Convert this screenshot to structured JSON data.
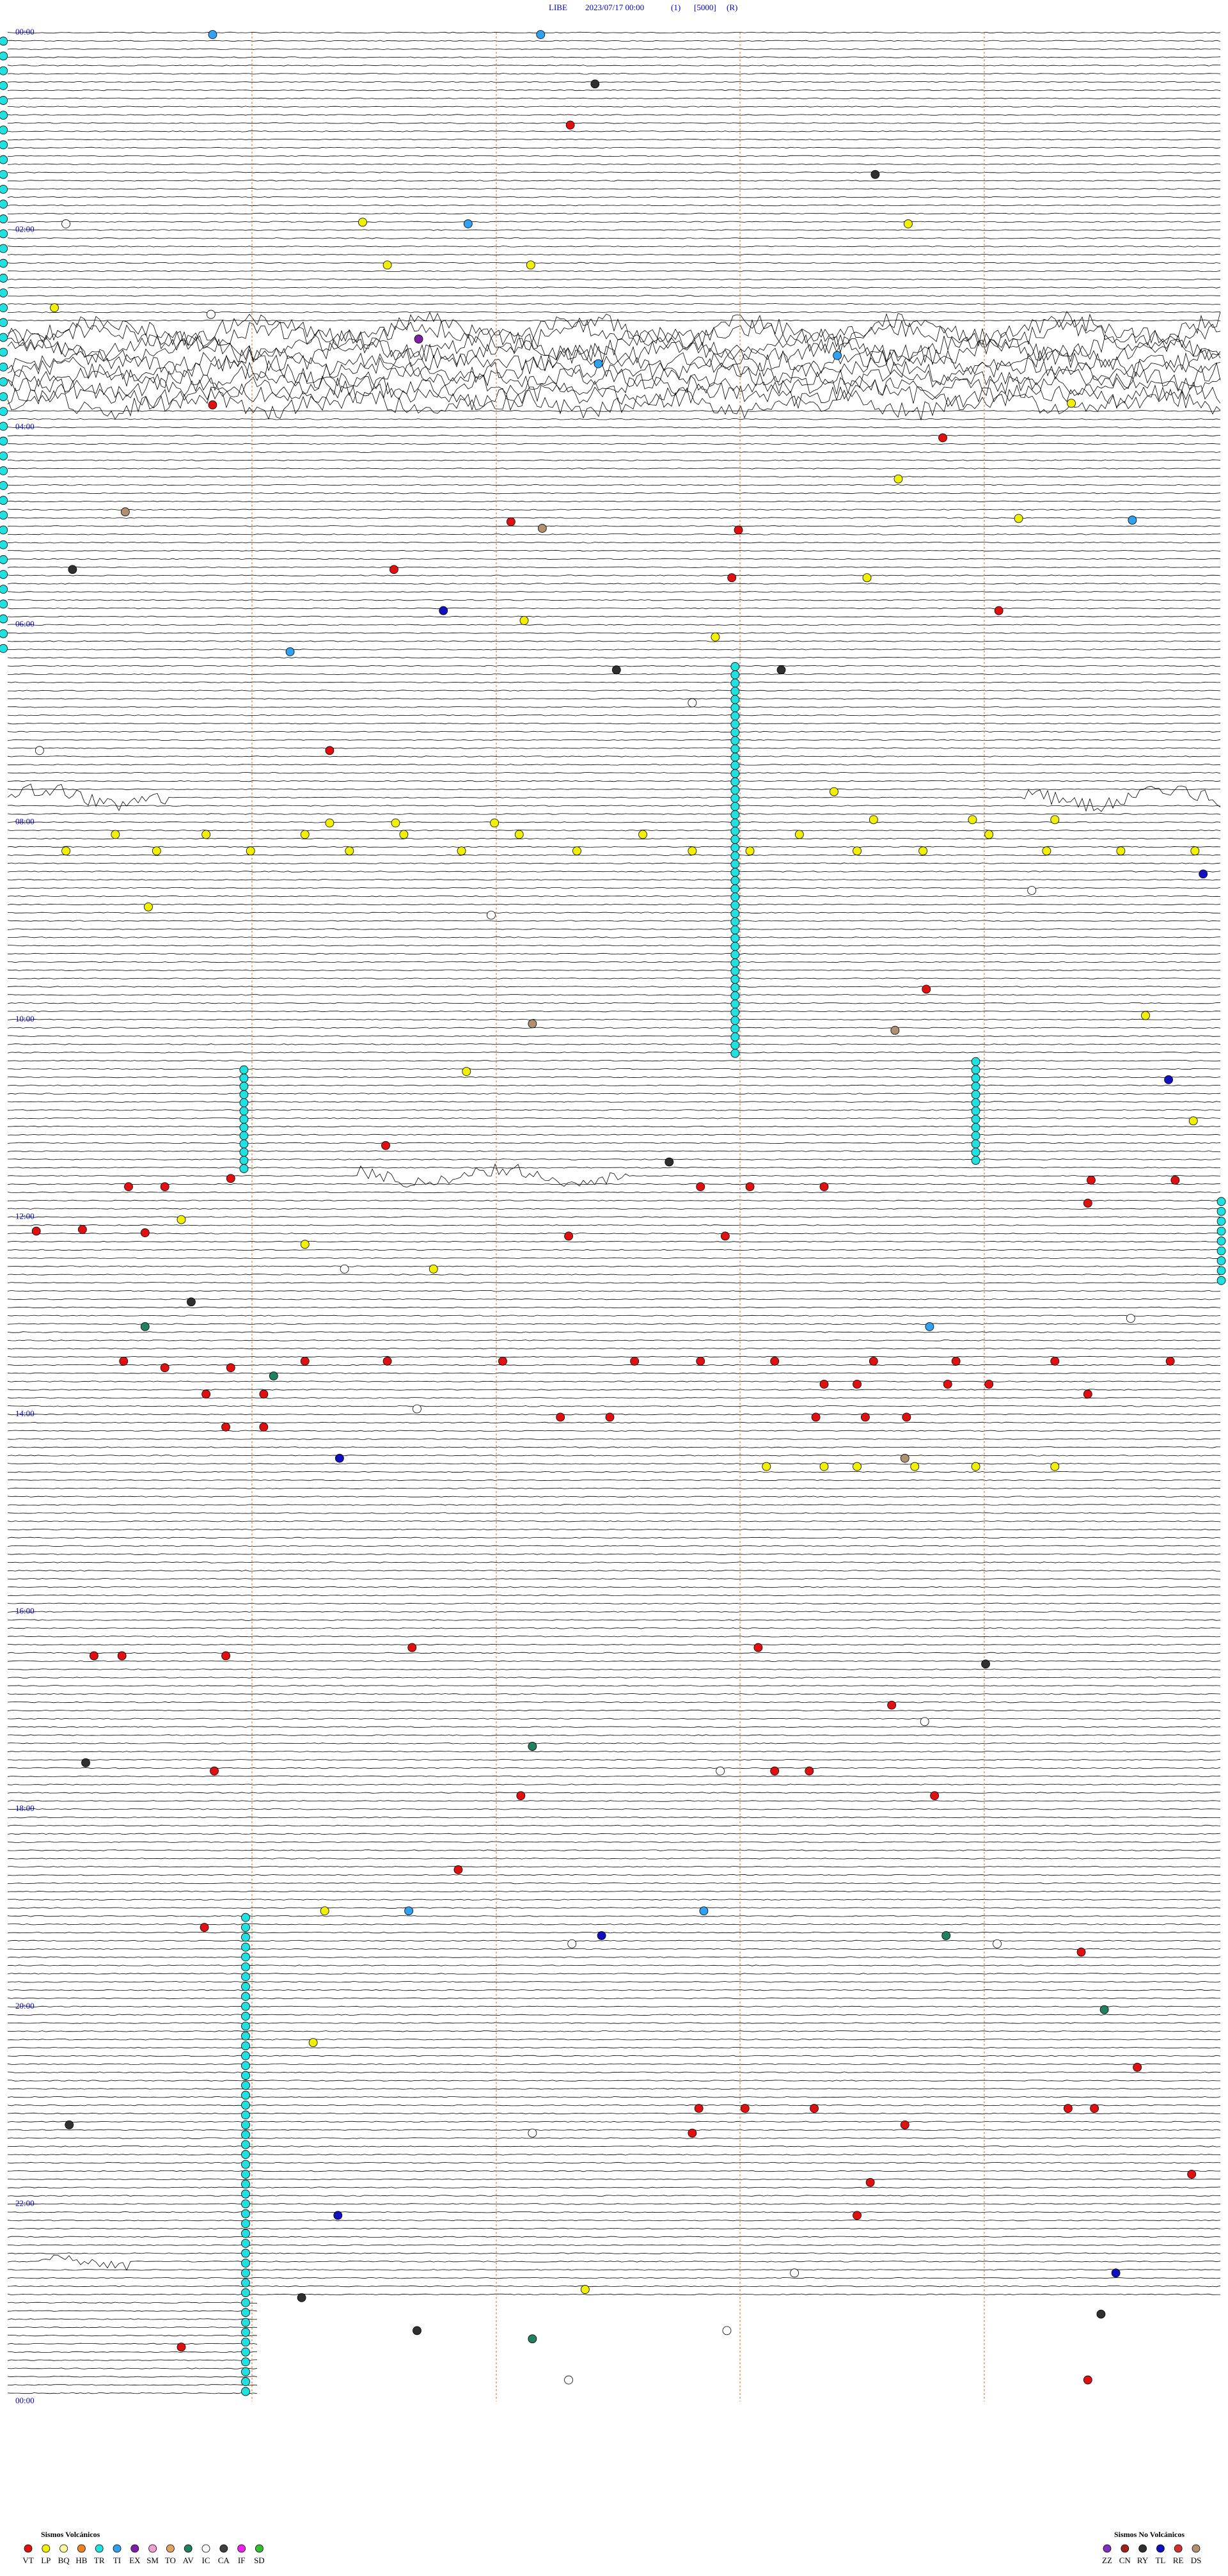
{
  "header": {
    "station": "LIBE",
    "datetime": "2023/07/17 00:00",
    "channel": "(1)",
    "scale": "[5000]",
    "mode": "(R)"
  },
  "hour_labels": [
    "00:00",
    "02:00",
    "04:00",
    "06:00",
    "08:00",
    "10:00",
    "12:00",
    "14:00",
    "16:00",
    "18:00",
    "20:00",
    "22:00",
    "00:00"
  ],
  "legend_volcanic": {
    "title": "Sismos Volcánicos",
    "items": [
      {
        "name": "VT",
        "color": "#e01010"
      },
      {
        "name": "LP",
        "color": "#f0f000"
      },
      {
        "name": "BQ",
        "color": "#f8f8a0"
      },
      {
        "name": "HB",
        "color": "#f08020"
      },
      {
        "name": "TR",
        "color": "#20e0e0"
      },
      {
        "name": "TI",
        "color": "#30a0f0"
      },
      {
        "name": "EX",
        "color": "#8020a0"
      },
      {
        "name": "SM",
        "color": "#f0a0d0"
      },
      {
        "name": "TO",
        "color": "#e0a060"
      },
      {
        "name": "AV",
        "color": "#208060"
      },
      {
        "name": "IC",
        "color": "#ffffff"
      },
      {
        "name": "CA",
        "color": "#404040"
      },
      {
        "name": "IF",
        "color": "#f020f0"
      },
      {
        "name": "SD",
        "color": "#30c030"
      }
    ]
  },
  "legend_non_volcanic": {
    "title": "Sismos No Volcánicos",
    "items": [
      {
        "name": "ZZ",
        "color": "#8030c0"
      },
      {
        "name": "CN",
        "color": "#a02020"
      },
      {
        "name": "RY",
        "color": "#303030"
      },
      {
        "name": "TL",
        "color": "#1010c0"
      },
      {
        "name": "RE",
        "color": "#d03030"
      },
      {
        "name": "DS",
        "color": "#b09070"
      }
    ]
  }
}
